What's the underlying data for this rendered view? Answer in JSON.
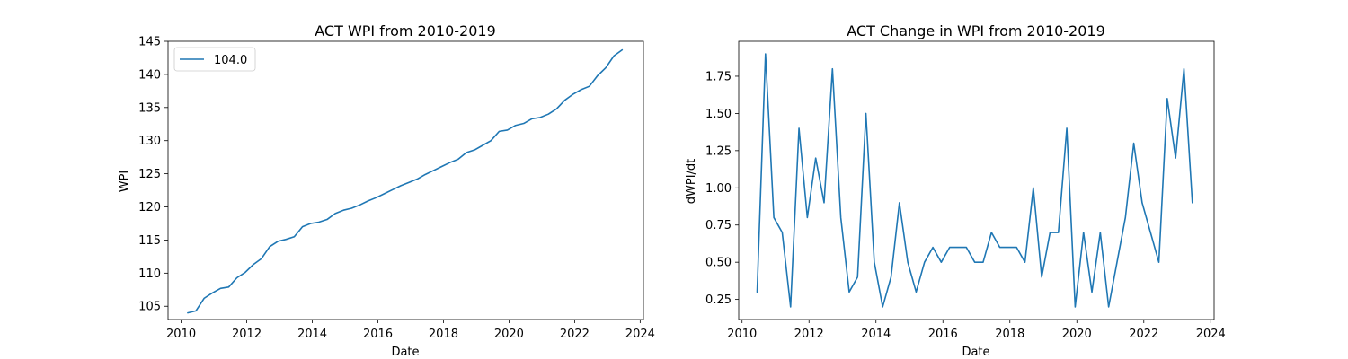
{
  "chart_data": [
    {
      "type": "line",
      "title": "ACT WPI from 2010-2019",
      "xlabel": "Date",
      "ylabel": "WPI",
      "xlim": [
        2009.6,
        2024.1
      ],
      "ylim": [
        103.0,
        145.0
      ],
      "xticks": [
        "2010",
        "2012",
        "2014",
        "2016",
        "2018",
        "2020",
        "2022",
        "2024"
      ],
      "yticks": [
        "105",
        "110",
        "115",
        "120",
        "125",
        "130",
        "135",
        "140",
        "145"
      ],
      "legend": {
        "position": "top-left",
        "entries": [
          "104.0"
        ]
      },
      "color": "#1f77b4",
      "series": [
        {
          "name": "104.0",
          "x": [
            2010.2,
            2010.45,
            2010.7,
            2010.95,
            2011.2,
            2011.45,
            2011.7,
            2011.95,
            2012.2,
            2012.45,
            2012.7,
            2012.95,
            2013.2,
            2013.45,
            2013.7,
            2013.95,
            2014.2,
            2014.45,
            2014.7,
            2014.95,
            2015.2,
            2015.45,
            2015.7,
            2015.95,
            2016.2,
            2016.45,
            2016.7,
            2016.95,
            2017.2,
            2017.45,
            2017.7,
            2017.95,
            2018.2,
            2018.45,
            2018.7,
            2018.95,
            2019.2,
            2019.45,
            2019.7,
            2019.95,
            2020.2,
            2020.45,
            2020.7,
            2020.95,
            2021.2,
            2021.45,
            2021.7,
            2021.95,
            2022.2,
            2022.45,
            2022.7,
            2022.95,
            2023.2,
            2023.45
          ],
          "values": [
            104.0,
            104.3,
            106.2,
            107.0,
            107.7,
            107.9,
            109.3,
            110.1,
            111.3,
            112.2,
            114.0,
            114.8,
            115.1,
            115.5,
            117.0,
            117.5,
            117.7,
            118.1,
            119.0,
            119.5,
            119.8,
            120.3,
            120.9,
            121.4,
            122.0,
            122.6,
            123.2,
            123.7,
            124.2,
            124.9,
            125.5,
            126.1,
            126.7,
            127.2,
            128.2,
            128.6,
            129.3,
            130.0,
            131.4,
            131.6,
            132.3,
            132.6,
            133.3,
            133.5,
            134.0,
            134.8,
            136.1,
            137.0,
            137.7,
            138.2,
            139.8,
            141.0,
            142.8,
            143.7
          ]
        }
      ]
    },
    {
      "type": "line",
      "title": "ACT Change in WPI from 2010-2019",
      "xlabel": "Date",
      "ylabel": "dWPI/dt",
      "xlim": [
        2009.9,
        2024.1
      ],
      "ylim": [
        0.115,
        1.985
      ],
      "xticks": [
        "2010",
        "2012",
        "2014",
        "2016",
        "2018",
        "2020",
        "2022",
        "2024"
      ],
      "yticks": [
        "0.25",
        "0.50",
        "0.75",
        "1.00",
        "1.25",
        "1.50",
        "1.75"
      ],
      "color": "#1f77b4",
      "series": [
        {
          "x": [
            2010.45,
            2010.7,
            2010.95,
            2011.2,
            2011.45,
            2011.7,
            2011.95,
            2012.2,
            2012.45,
            2012.7,
            2012.95,
            2013.2,
            2013.45,
            2013.7,
            2013.95,
            2014.2,
            2014.45,
            2014.7,
            2014.95,
            2015.2,
            2015.45,
            2015.7,
            2015.95,
            2016.2,
            2016.45,
            2016.7,
            2016.95,
            2017.2,
            2017.45,
            2017.7,
            2017.95,
            2018.2,
            2018.45,
            2018.7,
            2018.95,
            2019.2,
            2019.45,
            2019.7,
            2019.95,
            2020.2,
            2020.45,
            2020.7,
            2020.95,
            2021.2,
            2021.45,
            2021.7,
            2021.95,
            2022.2,
            2022.45,
            2022.7,
            2022.95,
            2023.2,
            2023.45
          ],
          "values": [
            0.3,
            1.9,
            0.8,
            0.7,
            0.2,
            1.4,
            0.8,
            1.2,
            0.9,
            1.8,
            0.8,
            0.3,
            0.4,
            1.5,
            0.5,
            0.2,
            0.4,
            0.9,
            0.5,
            0.3,
            0.5,
            0.6,
            0.5,
            0.6,
            0.6,
            0.6,
            0.5,
            0.5,
            0.7,
            0.6,
            0.6,
            0.6,
            0.5,
            1.0,
            0.4,
            0.7,
            0.7,
            1.4,
            0.2,
            0.7,
            0.3,
            0.7,
            0.2,
            0.5,
            0.8,
            1.3,
            0.9,
            0.7,
            0.5,
            1.6,
            1.2,
            1.8,
            0.9
          ]
        }
      ]
    }
  ]
}
